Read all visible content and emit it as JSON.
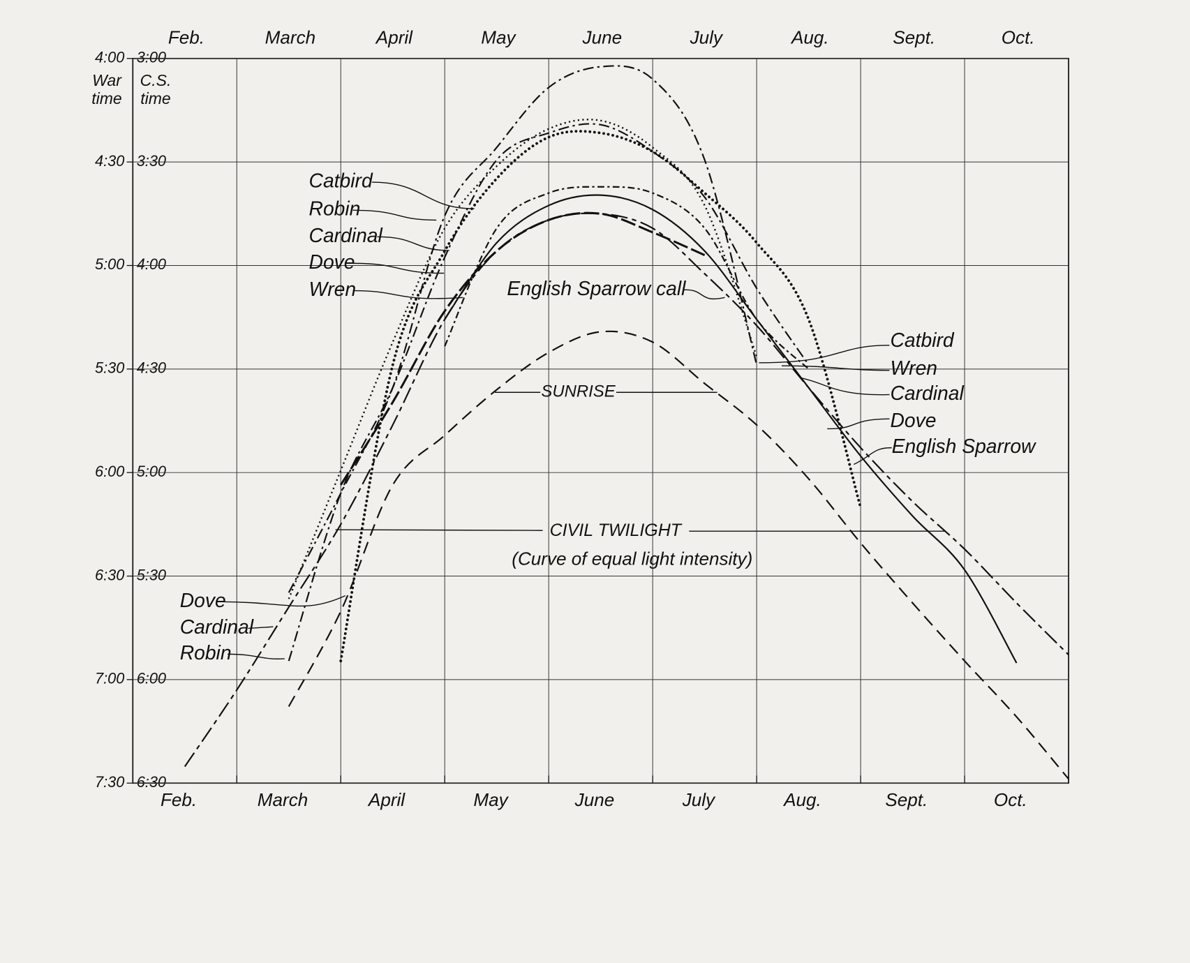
{
  "chart_data": {
    "type": "line",
    "categories": [
      null,
      "Feb.",
      null,
      "March",
      null,
      "April",
      null,
      "May",
      null,
      "June",
      null,
      "July",
      null,
      "Aug.",
      null,
      "Sept.",
      null,
      "Oct.",
      null
    ],
    "y_label": "C.S. time",
    "y2_label": "War time",
    "ylim": [
      6.5,
      3
    ],
    "yticks": [
      {
        "value": 3,
        "label": "3:00"
      },
      {
        "value": 3.5,
        "label": "3:30"
      },
      {
        "value": 4,
        "label": "4:00"
      },
      {
        "value": 4.5,
        "label": "4:30"
      },
      {
        "value": 5,
        "label": "5:00"
      },
      {
        "value": 5.5,
        "label": "5:30"
      },
      {
        "value": 6,
        "label": "6:00"
      },
      {
        "value": 6.5,
        "label": "6:30"
      }
    ],
    "y2lim": [
      7.5,
      4
    ],
    "y2ticks": [
      {
        "value": 4,
        "label": "4:00"
      },
      {
        "value": 4.5,
        "label": "4:30"
      },
      {
        "value": 5,
        "label": "5:00"
      },
      {
        "value": 5.5,
        "label": "5:30"
      },
      {
        "value": 6,
        "label": "6:00"
      },
      {
        "value": 6.5,
        "label": "6:30"
      },
      {
        "value": 7,
        "label": "7:00"
      },
      {
        "value": 7.5,
        "label": "7:30"
      }
    ],
    "grid": true,
    "annotations": [
      "(Curve of equal light intensity)"
    ],
    "series": [
      {
        "name": "SUNRISE",
        "color": "#111111",
        "style": "dashed",
        "values": [
          null,
          null,
          null,
          6.13,
          5.67,
          5.06,
          4.82,
          4.6,
          4.42,
          4.32,
          4.37,
          4.57,
          4.77,
          5.03,
          5.34,
          5.63,
          5.91,
          6.18,
          6.48
        ]
      },
      {
        "name": "CIVIL TWILIGHT",
        "color": "#111111",
        "style": "long-short",
        "values": [
          null,
          6.42,
          6.05,
          5.65,
          5.25,
          4.77,
          4.26,
          3.93,
          3.78,
          3.75,
          3.82,
          4.04,
          4.29,
          4.59,
          4.88,
          5.14,
          5.37,
          5.63,
          5.88
        ]
      },
      {
        "name": "Catbird",
        "color": "#111111",
        "style": "dash-dot",
        "values": [
          null,
          null,
          null,
          5.58,
          5.1,
          4.59,
          3.76,
          3.43,
          3.14,
          3.04,
          3.1,
          3.49,
          4.48,
          null,
          null,
          null,
          null,
          null,
          null
        ]
      },
      {
        "name": "Robin",
        "color": "#111111",
        "style": "dash-dot",
        "values": [
          null,
          null,
          null,
          5.91,
          5.1,
          4.59,
          3.96,
          3.49,
          3.36,
          3.32,
          3.45,
          3.67,
          4.11,
          4.48,
          null,
          null,
          null,
          null,
          null
        ]
      },
      {
        "name": "Cardinal",
        "color": "#111111",
        "style": "dotted",
        "values": [
          null,
          null,
          null,
          5.61,
          4.99,
          4.37,
          3.82,
          3.52,
          3.34,
          3.3,
          3.43,
          3.71,
          4.44,
          null,
          null,
          null,
          null,
          null,
          null
        ]
      },
      {
        "name": "Dove",
        "color": "#111111",
        "style": "circles",
        "values": [
          null,
          null,
          null,
          null,
          5.91,
          4.48,
          3.93,
          3.58,
          3.38,
          3.36,
          3.45,
          3.65,
          3.89,
          4.26,
          5.17,
          null,
          null,
          null,
          null
        ]
      },
      {
        "name": "Wren",
        "color": "#111111",
        "style": "crosses",
        "values": [
          null,
          null,
          null,
          null,
          null,
          null,
          4.39,
          3.82,
          3.65,
          3.62,
          3.65,
          3.82,
          4.26,
          4.5,
          null,
          null,
          null,
          null,
          null
        ]
      },
      {
        "name": "English Sparrow call",
        "color": "#111111",
        "style": "heavy-dashed",
        "values": [
          null,
          null,
          null,
          null,
          5.06,
          4.66,
          4.22,
          3.93,
          3.78,
          3.75,
          3.84,
          3.95,
          null,
          null,
          null,
          null,
          null,
          null,
          null
        ]
      },
      {
        "name": "English Sparrow",
        "color": "#111111",
        "style": "solid",
        "values": [
          null,
          null,
          null,
          null,
          null,
          null,
          4.26,
          3.89,
          3.71,
          3.66,
          3.73,
          3.93,
          4.26,
          4.59,
          4.92,
          5.21,
          5.47,
          5.92,
          null
        ]
      }
    ]
  }
}
